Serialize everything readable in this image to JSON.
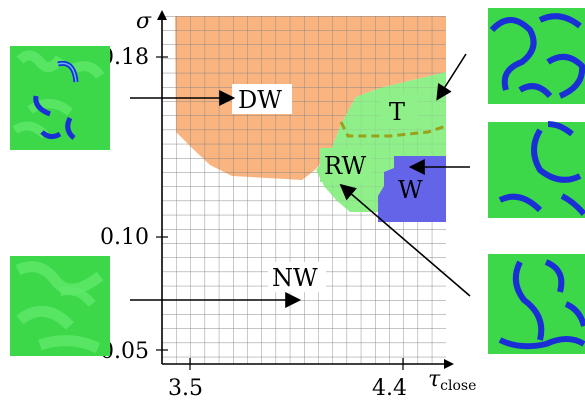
{
  "regions": {
    "DW": {
      "label": "DW",
      "color": "#f9b47f"
    },
    "NW": {
      "label": "NW",
      "color": "#ffffff"
    },
    "T": {
      "label": "T",
      "color": "#8ff08a"
    },
    "RW": {
      "label": "RW",
      "color": "#8ff08a"
    },
    "W": {
      "label": "W",
      "color": "#6464e8"
    }
  },
  "axes": {
    "y_label": "σ",
    "x_label": "τ",
    "x_label_sub": "close",
    "y_ticks": [
      "0.18",
      "0.10",
      "0.05"
    ],
    "x_ticks": [
      "3.5",
      "4.4"
    ]
  },
  "colors": {
    "grid": "#888888",
    "boundary_dash": "#9aa01a",
    "pattern_green": "#3cd84a",
    "pattern_blue": "#1a2fd6"
  }
}
